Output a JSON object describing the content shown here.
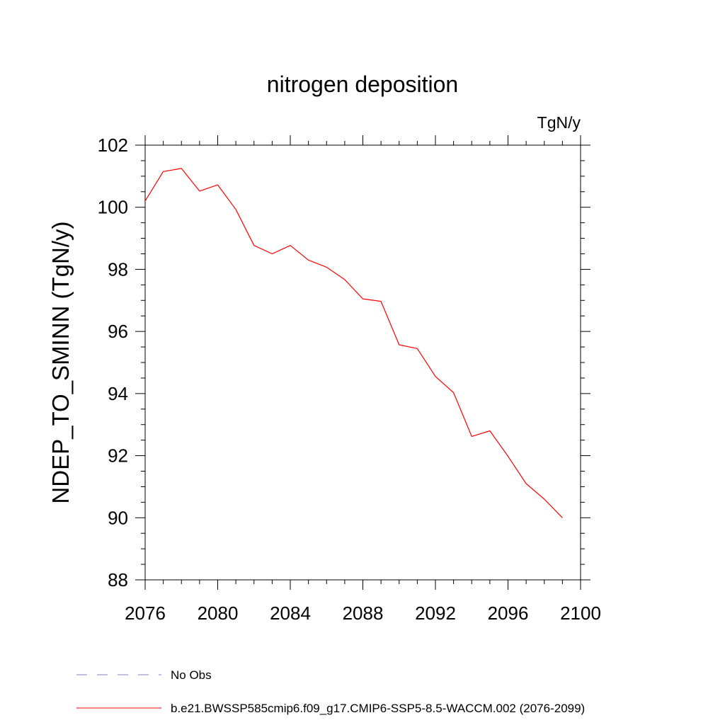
{
  "chart_data": {
    "type": "line",
    "title": "nitrogen deposition",
    "units_label": "TgN/y",
    "xlabel": "",
    "ylabel": "NDEP_TO_SMINN  (TgN/y)",
    "xlim": [
      2076,
      2100
    ],
    "ylim": [
      88,
      102
    ],
    "xticks": [
      2076,
      2080,
      2084,
      2088,
      2092,
      2096,
      2100
    ],
    "yticks": [
      88,
      90,
      92,
      94,
      96,
      98,
      100,
      102
    ],
    "xtick_labels": [
      "2076",
      "2080",
      "2084",
      "2088",
      "2092",
      "2096",
      "2100"
    ],
    "ytick_labels": [
      "88",
      "90",
      "92",
      "94",
      "96",
      "98",
      "100",
      "102"
    ],
    "grid": false,
    "legend_position": "bottom-left",
    "series": [
      {
        "name": "b.e21.BWSSP585cmip6.f09_g17.CMIP6-SSP5-8.5-WACCM.002 (2076-2099)",
        "color": "#ff0000",
        "style": "solid",
        "x": [
          2076,
          2077,
          2078,
          2079,
          2080,
          2081,
          2082,
          2083,
          2084,
          2085,
          2086,
          2087,
          2088,
          2089,
          2090,
          2091,
          2092,
          2093,
          2094,
          2095,
          2096,
          2097,
          2098,
          2099
        ],
        "y": [
          100.2,
          101.15,
          101.25,
          100.52,
          100.72,
          99.93,
          98.77,
          98.5,
          98.77,
          98.3,
          98.07,
          97.67,
          97.05,
          96.97,
          95.57,
          95.45,
          94.55,
          94.03,
          92.62,
          92.8,
          91.98,
          91.1,
          90.6,
          90.0
        ]
      },
      {
        "name": "No Obs",
        "color": "#8080c0",
        "style": "dashed",
        "x": [],
        "y": []
      }
    ]
  }
}
